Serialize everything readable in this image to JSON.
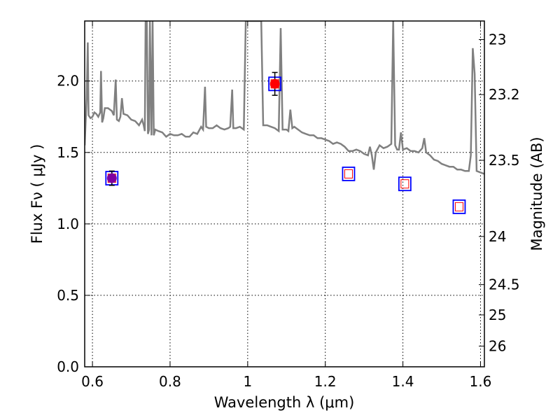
{
  "chart_data": {
    "type": "scatter",
    "title": "",
    "xlabel": "Wavelength  λ (μm)",
    "ylabel": "Flux  Fν  ( μJy )",
    "y2label": "Magnitude (AB)",
    "xlim": [
      0.58,
      1.61
    ],
    "ylim": [
      0.0,
      2.42
    ],
    "x_ticks": [
      0.6,
      0.8,
      1.0,
      1.2,
      1.4,
      1.6
    ],
    "x_tick_labels": [
      "0.6",
      "0.8",
      "1",
      "1.2",
      "1.4",
      "1.6"
    ],
    "y_ticks": [
      0.0,
      0.5,
      1.0,
      1.5,
      2.0
    ],
    "y_tick_labels": [
      "0.0",
      "0.5",
      "1.0",
      "1.5",
      "2.0"
    ],
    "y2_ticks": [
      {
        "label": "23",
        "flux": 2.29
      },
      {
        "label": "23.2",
        "flux": 1.905
      },
      {
        "label": "23.5",
        "flux": 1.445
      },
      {
        "label": "24",
        "flux": 0.912
      },
      {
        "label": "24.5",
        "flux": 0.575
      },
      {
        "label": "25",
        "flux": 0.363
      },
      {
        "label": "26",
        "flux": 0.145
      }
    ],
    "grid": true,
    "colors": {
      "model": "#808080",
      "observed": "#ff0000",
      "observed_wide": "#8000a0",
      "model_box": "#0000ff",
      "model_inner": "#ff0000",
      "errorbar": "#000000"
    },
    "series": [
      {
        "kind": "line",
        "points": [
          [
            0.58,
            1.55
          ],
          [
            0.585,
            1.88
          ],
          [
            0.588,
            2.27
          ],
          [
            0.59,
            1.76
          ],
          [
            0.595,
            1.74
          ],
          [
            0.6,
            1.75
          ],
          [
            0.605,
            1.78
          ],
          [
            0.61,
            1.77
          ],
          [
            0.615,
            1.75
          ],
          [
            0.62,
            1.78
          ],
          [
            0.622,
            2.07
          ],
          [
            0.625,
            1.71
          ],
          [
            0.628,
            1.74
          ],
          [
            0.632,
            1.81
          ],
          [
            0.64,
            1.81
          ],
          [
            0.65,
            1.79
          ],
          [
            0.655,
            1.76
          ],
          [
            0.66,
            2.01
          ],
          [
            0.663,
            1.73
          ],
          [
            0.668,
            1.72
          ],
          [
            0.672,
            1.75
          ],
          [
            0.676,
            1.88
          ],
          [
            0.68,
            1.77
          ],
          [
            0.69,
            1.76
          ],
          [
            0.7,
            1.73
          ],
          [
            0.71,
            1.72
          ],
          [
            0.72,
            1.69
          ],
          [
            0.728,
            1.73
          ],
          [
            0.732,
            1.69
          ],
          [
            0.735,
            1.65
          ],
          [
            0.737,
            2.42
          ],
          [
            0.74,
            2.42
          ],
          [
            0.743,
            1.63
          ],
          [
            0.746,
            1.66
          ],
          [
            0.748,
            2.42
          ],
          [
            0.752,
            1.62
          ],
          [
            0.755,
            2.42
          ],
          [
            0.758,
            1.62
          ],
          [
            0.762,
            1.66
          ],
          [
            0.77,
            1.65
          ],
          [
            0.78,
            1.64
          ],
          [
            0.79,
            1.61
          ],
          [
            0.8,
            1.63
          ],
          [
            0.81,
            1.62
          ],
          [
            0.82,
            1.62
          ],
          [
            0.83,
            1.63
          ],
          [
            0.84,
            1.61
          ],
          [
            0.85,
            1.61
          ],
          [
            0.86,
            1.64
          ],
          [
            0.87,
            1.63
          ],
          [
            0.88,
            1.68
          ],
          [
            0.885,
            1.66
          ],
          [
            0.89,
            1.96
          ],
          [
            0.893,
            1.68
          ],
          [
            0.9,
            1.67
          ],
          [
            0.91,
            1.67
          ],
          [
            0.92,
            1.69
          ],
          [
            0.93,
            1.67
          ],
          [
            0.94,
            1.66
          ],
          [
            0.95,
            1.67
          ],
          [
            0.955,
            1.68
          ],
          [
            0.96,
            1.94
          ],
          [
            0.963,
            1.67
          ],
          [
            0.97,
            1.67
          ],
          [
            0.98,
            1.68
          ],
          [
            0.99,
            1.66
          ],
          [
            0.995,
            2.42
          ],
          [
            1.0,
            2.42
          ],
          [
            1.01,
            2.42
          ],
          [
            1.02,
            2.42
          ],
          [
            1.03,
            2.42
          ],
          [
            1.035,
            2.42
          ],
          [
            1.04,
            1.69
          ],
          [
            1.05,
            1.69
          ],
          [
            1.06,
            1.68
          ],
          [
            1.07,
            1.67
          ],
          [
            1.08,
            1.65
          ],
          [
            1.085,
            2.37
          ],
          [
            1.09,
            1.66
          ],
          [
            1.1,
            1.66
          ],
          [
            1.105,
            1.65
          ],
          [
            1.11,
            1.8
          ],
          [
            1.115,
            1.67
          ],
          [
            1.12,
            1.68
          ],
          [
            1.13,
            1.66
          ],
          [
            1.14,
            1.64
          ],
          [
            1.15,
            1.63
          ],
          [
            1.16,
            1.62
          ],
          [
            1.17,
            1.62
          ],
          [
            1.18,
            1.6
          ],
          [
            1.19,
            1.6
          ],
          [
            1.2,
            1.59
          ],
          [
            1.21,
            1.58
          ],
          [
            1.22,
            1.56
          ],
          [
            1.23,
            1.57
          ],
          [
            1.24,
            1.56
          ],
          [
            1.25,
            1.54
          ],
          [
            1.26,
            1.51
          ],
          [
            1.27,
            1.51
          ],
          [
            1.28,
            1.52
          ],
          [
            1.29,
            1.51
          ],
          [
            1.3,
            1.49
          ],
          [
            1.31,
            1.48
          ],
          [
            1.315,
            1.54
          ],
          [
            1.32,
            1.48
          ],
          [
            1.325,
            1.38
          ],
          [
            1.33,
            1.5
          ],
          [
            1.34,
            1.55
          ],
          [
            1.35,
            1.53
          ],
          [
            1.36,
            1.54
          ],
          [
            1.37,
            1.56
          ],
          [
            1.375,
            2.42
          ],
          [
            1.38,
            1.55
          ],
          [
            1.385,
            1.52
          ],
          [
            1.39,
            1.52
          ],
          [
            1.395,
            1.64
          ],
          [
            1.4,
            1.52
          ],
          [
            1.41,
            1.53
          ],
          [
            1.42,
            1.51
          ],
          [
            1.43,
            1.51
          ],
          [
            1.44,
            1.5
          ],
          [
            1.45,
            1.53
          ],
          [
            1.455,
            1.6
          ],
          [
            1.46,
            1.5
          ],
          [
            1.47,
            1.48
          ],
          [
            1.48,
            1.45
          ],
          [
            1.49,
            1.44
          ],
          [
            1.5,
            1.42
          ],
          [
            1.51,
            1.41
          ],
          [
            1.52,
            1.4
          ],
          [
            1.53,
            1.4
          ],
          [
            1.54,
            1.38
          ],
          [
            1.55,
            1.38
          ],
          [
            1.56,
            1.37
          ],
          [
            1.57,
            1.37
          ],
          [
            1.575,
            1.48
          ],
          [
            1.58,
            2.23
          ],
          [
            1.585,
            2.05
          ],
          [
            1.59,
            1.37
          ],
          [
            1.6,
            1.36
          ],
          [
            1.61,
            1.35
          ]
        ]
      },
      {
        "kind": "model_box",
        "x": 0.65,
        "y": 1.32
      },
      {
        "kind": "model_box",
        "x": 1.07,
        "y": 1.98
      },
      {
        "kind": "model_box",
        "x": 1.26,
        "y": 1.35
      },
      {
        "kind": "model_box",
        "x": 1.405,
        "y": 1.28
      },
      {
        "kind": "model_box",
        "x": 1.545,
        "y": 1.12
      },
      {
        "kind": "observed",
        "x": 0.65,
        "y": 1.32,
        "yerr": 0.05,
        "color": "observed_wide"
      },
      {
        "kind": "observed",
        "x": 1.07,
        "y": 1.98,
        "yerr": 0.08,
        "color": "observed"
      }
    ]
  }
}
